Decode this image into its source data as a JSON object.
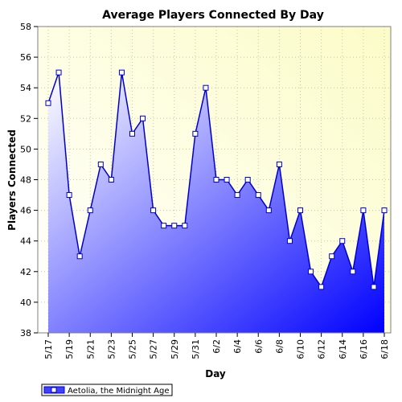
{
  "chart_data": {
    "type": "area",
    "title": "Average Players Connected By Day",
    "xlabel": "Day",
    "ylabel": "Players Connected",
    "ylim": [
      38,
      58
    ],
    "yticks": [
      "38",
      "40",
      "42",
      "44",
      "46",
      "48",
      "50",
      "52",
      "54",
      "56",
      "58"
    ],
    "x": [
      "5/17",
      "5/18",
      "5/19",
      "5/20",
      "5/21",
      "5/22",
      "5/23",
      "5/24",
      "5/25",
      "5/26",
      "5/27",
      "5/28",
      "5/29",
      "5/30",
      "5/31",
      "6/1",
      "6/2",
      "6/3",
      "6/4",
      "6/5",
      "6/6",
      "6/7",
      "6/8",
      "6/9",
      "6/10",
      "6/11",
      "6/12",
      "6/13",
      "6/14",
      "6/15",
      "6/16",
      "6/17",
      "6/18"
    ],
    "xtick_labels": [
      "5/17",
      "5/19",
      "5/21",
      "5/23",
      "5/25",
      "5/27",
      "5/29",
      "5/31",
      "6/2",
      "6/4",
      "6/6",
      "6/8",
      "6/10",
      "6/12",
      "6/14",
      "6/16",
      "6/18"
    ],
    "series": [
      {
        "name": "Aetolia, the Midnight Age",
        "values": [
          53,
          55,
          47,
          43,
          46,
          49,
          48,
          55,
          51,
          52,
          46,
          45,
          45,
          45,
          51,
          54,
          48,
          48,
          47,
          48,
          47,
          46,
          49,
          44,
          46,
          42,
          41,
          43,
          44,
          42,
          46,
          41,
          46
        ]
      }
    ],
    "grid": true,
    "legend": "bottom-left",
    "colors": {
      "line": "#0000cc",
      "fill_light": "#ffffff",
      "fill_dark": "#0000ff",
      "plot_bg_light": "#ffffe6",
      "plot_bg": "#fdfdd6"
    }
  }
}
